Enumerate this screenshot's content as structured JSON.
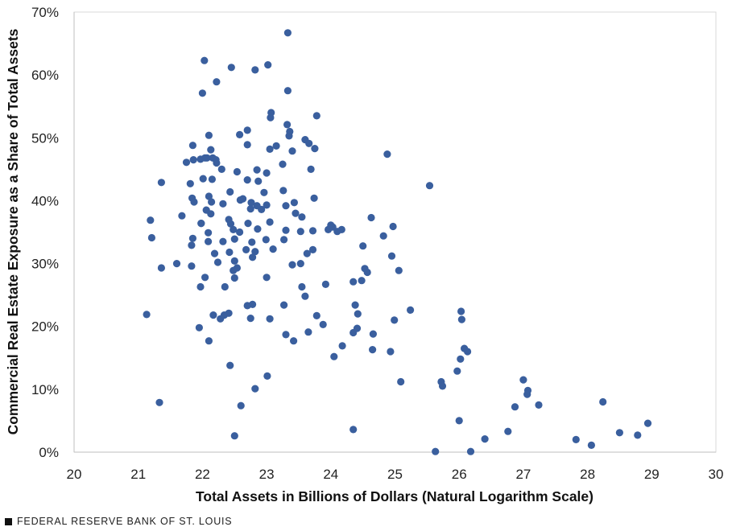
{
  "footer": {
    "text": "FEDERAL RESERVE BANK OF ST. LOUIS"
  },
  "chart_data": {
    "type": "scatter",
    "xlabel": "Total Assets in Billions of Dollars (Natural Logarithm Scale)",
    "ylabel": "Commercial Real Estate Exposure as a Share of Total Assets",
    "xlim": [
      20,
      30
    ],
    "ylim": [
      0,
      70
    ],
    "x_ticks": [
      "20",
      "21",
      "22",
      "23",
      "24",
      "25",
      "26",
      "27",
      "28",
      "29",
      "30"
    ],
    "y_ticks": [
      "0%",
      "10%",
      "20%",
      "30%",
      "40%",
      "50%",
      "60%",
      "70%"
    ],
    "grid": false,
    "point_color": "#3a5f9e",
    "points": [
      [
        23.33,
        66.7
      ],
      [
        22.03,
        62.3
      ],
      [
        22.45,
        61.2
      ],
      [
        23.02,
        61.6
      ],
      [
        22.82,
        60.8
      ],
      [
        22.22,
        58.9
      ],
      [
        23.33,
        57.5
      ],
      [
        22.0,
        57.1
      ],
      [
        23.07,
        54.0
      ],
      [
        23.78,
        53.5
      ],
      [
        23.06,
        53.2
      ],
      [
        23.32,
        52.1
      ],
      [
        22.7,
        51.2
      ],
      [
        23.36,
        51.0
      ],
      [
        22.58,
        50.5
      ],
      [
        22.1,
        50.4
      ],
      [
        23.35,
        50.3
      ],
      [
        23.6,
        49.7
      ],
      [
        22.7,
        48.9
      ],
      [
        23.66,
        49.1
      ],
      [
        23.15,
        48.7
      ],
      [
        21.85,
        48.8
      ],
      [
        23.05,
        48.2
      ],
      [
        22.13,
        48.1
      ],
      [
        23.75,
        48.3
      ],
      [
        23.4,
        47.9
      ],
      [
        24.88,
        47.4
      ],
      [
        21.86,
        46.5
      ],
      [
        22.21,
        46.5
      ],
      [
        22.04,
        46.8
      ],
      [
        22.16,
        46.8
      ],
      [
        22.07,
        46.8
      ],
      [
        21.97,
        46.6
      ],
      [
        21.75,
        46.1
      ],
      [
        23.25,
        45.8
      ],
      [
        22.22,
        46.0
      ],
      [
        22.3,
        45.0
      ],
      [
        22.85,
        44.9
      ],
      [
        23.0,
        44.4
      ],
      [
        22.54,
        44.6
      ],
      [
        23.69,
        45.0
      ],
      [
        25.54,
        42.4
      ],
      [
        21.36,
        42.9
      ],
      [
        21.81,
        42.7
      ],
      [
        22.01,
        43.5
      ],
      [
        22.15,
        43.4
      ],
      [
        22.7,
        43.3
      ],
      [
        22.87,
        43.1
      ],
      [
        23.26,
        41.6
      ],
      [
        22.43,
        41.4
      ],
      [
        22.96,
        41.3
      ],
      [
        21.84,
        40.4
      ],
      [
        22.1,
        40.7
      ],
      [
        22.63,
        40.3
      ],
      [
        22.59,
        40.1
      ],
      [
        22.14,
        39.8
      ],
      [
        22.76,
        39.7
      ],
      [
        23.43,
        39.7
      ],
      [
        23.0,
        39.3
      ],
      [
        22.85,
        39.2
      ],
      [
        22.32,
        39.5
      ],
      [
        21.87,
        39.8
      ],
      [
        23.3,
        39.2
      ],
      [
        23.74,
        40.4
      ],
      [
        22.92,
        38.6
      ],
      [
        22.75,
        38.7
      ],
      [
        23.45,
        38.0
      ],
      [
        22.06,
        38.5
      ],
      [
        21.68,
        37.6
      ],
      [
        23.55,
        37.4
      ],
      [
        22.13,
        37.9
      ],
      [
        22.41,
        37.0
      ],
      [
        22.71,
        36.4
      ],
      [
        21.98,
        36.4
      ],
      [
        21.98,
        36.4
      ],
      [
        22.44,
        36.3
      ],
      [
        23.05,
        36.6
      ],
      [
        24.0,
        36.1
      ],
      [
        24.63,
        37.3
      ],
      [
        23.96,
        35.4
      ],
      [
        21.19,
        36.9
      ],
      [
        22.48,
        35.4
      ],
      [
        22.58,
        35.0
      ],
      [
        23.3,
        35.3
      ],
      [
        22.86,
        35.5
      ],
      [
        24.17,
        35.4
      ],
      [
        23.72,
        35.2
      ],
      [
        24.03,
        35.8
      ],
      [
        24.1,
        35.1
      ],
      [
        23.53,
        35.1
      ],
      [
        22.09,
        34.9
      ],
      [
        21.21,
        34.1
      ],
      [
        21.85,
        34.0
      ],
      [
        24.97,
        35.9
      ],
      [
        22.99,
        33.8
      ],
      [
        22.5,
        33.9
      ],
      [
        22.09,
        33.5
      ],
      [
        22.77,
        33.4
      ],
      [
        23.27,
        33.8
      ],
      [
        22.32,
        33.5
      ],
      [
        24.5,
        32.8
      ],
      [
        24.82,
        34.4
      ],
      [
        23.72,
        32.2
      ],
      [
        21.83,
        32.9
      ],
      [
        23.63,
        31.6
      ],
      [
        22.68,
        32.2
      ],
      [
        22.19,
        31.6
      ],
      [
        22.42,
        31.8
      ],
      [
        22.82,
        31.9
      ],
      [
        23.1,
        32.3
      ],
      [
        22.78,
        31.0
      ],
      [
        24.95,
        31.2
      ],
      [
        22.5,
        30.4
      ],
      [
        21.36,
        29.3
      ],
      [
        21.6,
        30.0
      ],
      [
        23.4,
        29.8
      ],
      [
        22.24,
        30.2
      ],
      [
        23.53,
        30.0
      ],
      [
        21.83,
        29.6
      ],
      [
        22.54,
        29.3
      ],
      [
        22.48,
        28.9
      ],
      [
        25.06,
        28.9
      ],
      [
        24.53,
        29.2
      ],
      [
        22.04,
        27.8
      ],
      [
        22.5,
        27.7
      ],
      [
        23.0,
        27.8
      ],
      [
        24.57,
        28.6
      ],
      [
        23.92,
        26.7
      ],
      [
        24.35,
        27.1
      ],
      [
        24.48,
        27.3
      ],
      [
        23.55,
        26.3
      ],
      [
        22.35,
        26.3
      ],
      [
        21.97,
        26.3
      ],
      [
        23.6,
        24.8
      ],
      [
        22.7,
        23.3
      ],
      [
        22.78,
        23.5
      ],
      [
        24.38,
        23.4
      ],
      [
        23.27,
        23.4
      ],
      [
        25.24,
        22.6
      ],
      [
        26.03,
        22.4
      ],
      [
        21.13,
        21.9
      ],
      [
        22.41,
        22.1
      ],
      [
        22.34,
        21.8
      ],
      [
        22.17,
        21.8
      ],
      [
        22.75,
        21.3
      ],
      [
        23.05,
        21.2
      ],
      [
        23.78,
        21.7
      ],
      [
        22.28,
        21.2
      ],
      [
        24.99,
        21.0
      ],
      [
        26.04,
        21.1
      ],
      [
        24.42,
        22.0
      ],
      [
        23.88,
        20.3
      ],
      [
        21.95,
        19.8
      ],
      [
        24.41,
        19.7
      ],
      [
        24.35,
        19.0
      ],
      [
        24.66,
        18.8
      ],
      [
        23.3,
        18.7
      ],
      [
        23.65,
        19.1
      ],
      [
        22.1,
        17.7
      ],
      [
        23.42,
        17.7
      ],
      [
        24.18,
        16.9
      ],
      [
        24.65,
        16.3
      ],
      [
        24.93,
        16.0
      ],
      [
        26.08,
        16.5
      ],
      [
        26.13,
        16.0
      ],
      [
        24.05,
        15.2
      ],
      [
        26.02,
        14.8
      ],
      [
        22.43,
        13.8
      ],
      [
        25.97,
        12.9
      ],
      [
        23.01,
        12.1
      ],
      [
        27.0,
        11.5
      ],
      [
        25.72,
        11.2
      ],
      [
        25.09,
        11.2
      ],
      [
        25.74,
        10.5
      ],
      [
        27.07,
        9.8
      ],
      [
        27.06,
        9.2
      ],
      [
        22.82,
        10.1
      ],
      [
        21.33,
        7.9
      ],
      [
        22.6,
        7.4
      ],
      [
        27.24,
        7.5
      ],
      [
        26.87,
        7.2
      ],
      [
        28.24,
        8.0
      ],
      [
        26.0,
        5.0
      ],
      [
        28.94,
        4.6
      ],
      [
        24.35,
        3.6
      ],
      [
        26.76,
        3.3
      ],
      [
        28.5,
        3.1
      ],
      [
        28.78,
        2.7
      ],
      [
        22.5,
        2.6
      ],
      [
        26.4,
        2.1
      ],
      [
        27.82,
        2.0
      ],
      [
        28.06,
        1.1
      ],
      [
        25.63,
        0.1
      ],
      [
        26.18,
        0.1
      ]
    ]
  }
}
